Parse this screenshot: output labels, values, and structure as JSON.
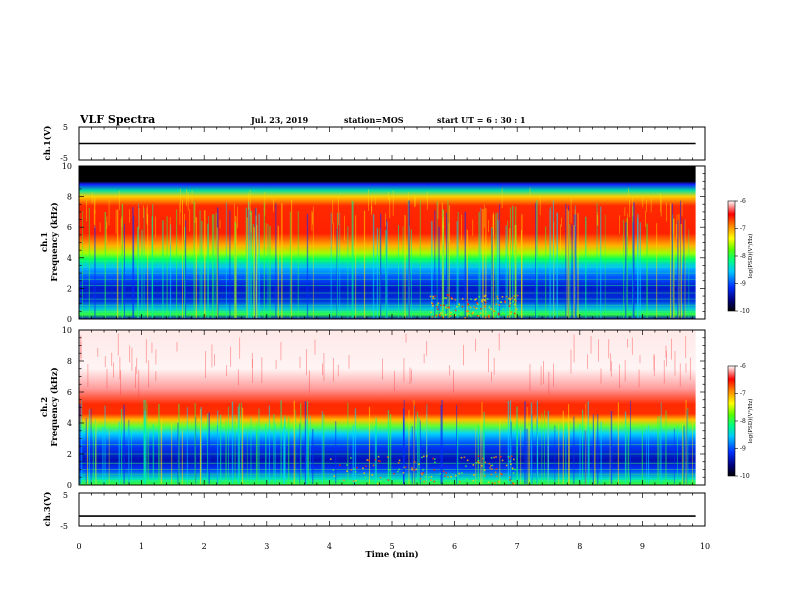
{
  "header": {
    "title": "VLF Spectra",
    "date": "Jul. 23, 2019",
    "station": "station=MOS",
    "start": "start UT =  6 : 30 : 1"
  },
  "colors": {
    "axes": "#000000",
    "background": "#ffffff",
    "trace": "#000000",
    "band_top": "#000000"
  },
  "chart_data": [
    {
      "type": "line",
      "panel": "ch1-voltage",
      "ylabel": "ch.1(V)",
      "ylim": [
        -5,
        5
      ],
      "yticks": [
        "5",
        "-5"
      ],
      "x": [
        0,
        9.85
      ],
      "series": [
        {
          "values": [
            0,
            0
          ]
        }
      ]
    },
    {
      "type": "heatmap",
      "panel": "ch1-spectrogram",
      "ylabel_top": "ch.1",
      "ylabel": "Frequency (kHz)",
      "ylim": [
        0,
        10
      ],
      "yticks": [
        "0",
        "2",
        "4",
        "6",
        "8",
        "10"
      ],
      "xlim": [
        0,
        10
      ],
      "colorbar": {
        "label": "log(PSD)(V²/Hz)",
        "range": [
          -10,
          -6
        ],
        "ticks": [
          "-6",
          "-7",
          "-8",
          "-9",
          "-10"
        ]
      }
    },
    {
      "type": "heatmap",
      "panel": "ch2-spectrogram",
      "ylabel_top": "ch.2",
      "ylabel": "Frequency (kHz)",
      "ylim": [
        0,
        10
      ],
      "yticks": [
        "0",
        "2",
        "4",
        "6",
        "8",
        "10"
      ],
      "xlim": [
        0,
        10
      ],
      "colorbar": {
        "label": "log(PSD)(V²/Hz)",
        "range": [
          -10,
          -6
        ],
        "ticks": [
          "-6",
          "-7",
          "-8",
          "-9",
          "-10"
        ]
      }
    },
    {
      "type": "line",
      "panel": "ch3-voltage",
      "ylabel": "ch.3(V)",
      "ylim": [
        -5,
        5
      ],
      "yticks": [
        "5",
        "-5"
      ],
      "x": [
        0,
        9.85
      ],
      "series": [
        {
          "values": [
            -2,
            -2
          ]
        }
      ]
    }
  ],
  "xaxis": {
    "label": "Time (min)",
    "ticks": [
      "0",
      "1",
      "2",
      "3",
      "4",
      "5",
      "6",
      "7",
      "8",
      "9",
      "10"
    ],
    "range": [
      0,
      10
    ]
  }
}
